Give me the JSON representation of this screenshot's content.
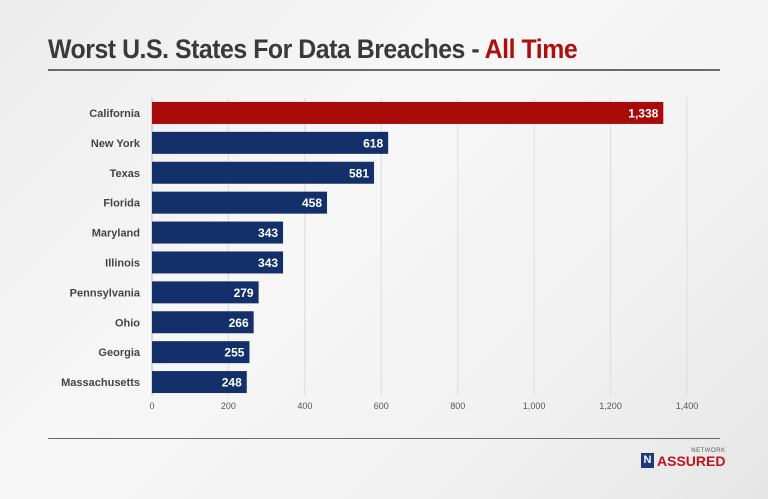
{
  "chart_data": {
    "type": "bar",
    "orientation": "horizontal",
    "title": "Worst U.S. States For Data Breaches - ",
    "title_accent": "All Time",
    "categories": [
      "California",
      "New York",
      "Texas",
      "Florida",
      "Maryland",
      "Illinois",
      "Pennsylvania",
      "Ohio",
      "Georgia",
      "Massachusetts"
    ],
    "values": [
      1338,
      618,
      581,
      458,
      343,
      343,
      279,
      266,
      255,
      248
    ],
    "value_labels": [
      "1,338",
      "618",
      "581",
      "458",
      "343",
      "343",
      "279",
      "266",
      "255",
      "248"
    ],
    "xlim": [
      0,
      1400
    ],
    "ticks": [
      0,
      200,
      400,
      600,
      800,
      1000,
      1200,
      1400
    ],
    "tick_labels": [
      "0",
      "200",
      "400",
      "600",
      "800",
      "1,000",
      "1,200",
      "1,400"
    ],
    "grid": true,
    "colors": {
      "highlight": "#a90a0a",
      "bar": "#14306b",
      "title_accent": "#b00d0d"
    }
  },
  "branding": {
    "logo_small": "NETWORK",
    "logo_big": "ASSURED",
    "logo_mark": "N"
  }
}
